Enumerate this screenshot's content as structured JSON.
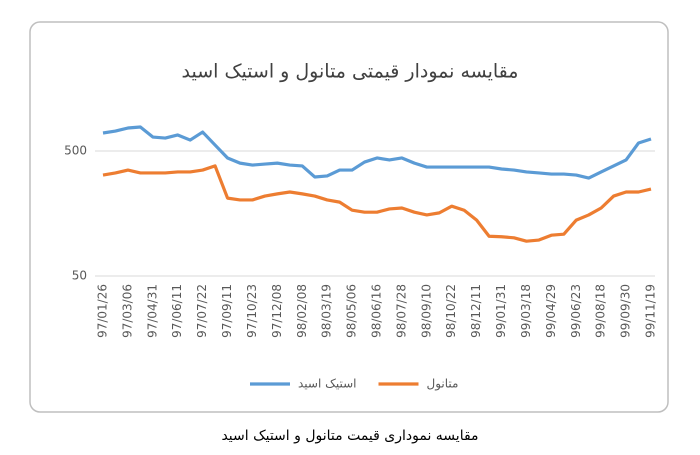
{
  "chart_data": {
    "type": "line",
    "title": "مقایسه نمودار قیمتی متانول و استیک اسید",
    "categories": [
      "97/01/26",
      null,
      "97/03/06",
      null,
      "97/04/31",
      null,
      "97/06/11",
      null,
      "97/07/22",
      null,
      "97/09/11",
      null,
      "97/10/23",
      null,
      "97/12/08",
      null,
      "98/02/08",
      null,
      "98/03/19",
      null,
      "98/05/06",
      null,
      "98/06/16",
      null,
      "98/07/28",
      null,
      "98/09/10",
      null,
      "98/10/22",
      null,
      "98/12/11",
      null,
      "99/01/31",
      null,
      "99/03/18",
      null,
      "99/04/29",
      null,
      "99/06/23",
      null,
      "99/08/18",
      null,
      "99/09/30",
      null,
      "99/11/19"
    ],
    "series": [
      {
        "name": "استیک اسید",
        "color": "#5b9bd5",
        "values": [
          697,
          722,
          764,
          778,
          647,
          635,
          672,
          612,
          709,
          558,
          440,
          400,
          386,
          393,
          400,
          386,
          380,
          310,
          316,
          352,
          352,
          408,
          440,
          424,
          440,
          400,
          372,
          372,
          372,
          372,
          372,
          372,
          359,
          352,
          340,
          334,
          327,
          327,
          321,
          304,
          340,
          380,
          424,
          580,
          624
        ]
      },
      {
        "name": "متانول",
        "color": "#ed7d31",
        "values": [
          321,
          334,
          352,
          334,
          334,
          334,
          340,
          340,
          352,
          380,
          210,
          203,
          203,
          218,
          227,
          235,
          227,
          218,
          203,
          195,
          168,
          162,
          162,
          172,
          175,
          162,
          154,
          160,
          181,
          168,
          140,
          104,
          103,
          101,
          95,
          97,
          106,
          108,
          140,
          154,
          175,
          218,
          235,
          235,
          248
        ]
      }
    ],
    "ylim": [
      50,
      1000
    ],
    "yticks": [
      50,
      500
    ],
    "log_scale": true,
    "grid": true,
    "legend": "bottom"
  },
  "caption": "مقایسه نموداری قیمت متانول و استیک اسید"
}
